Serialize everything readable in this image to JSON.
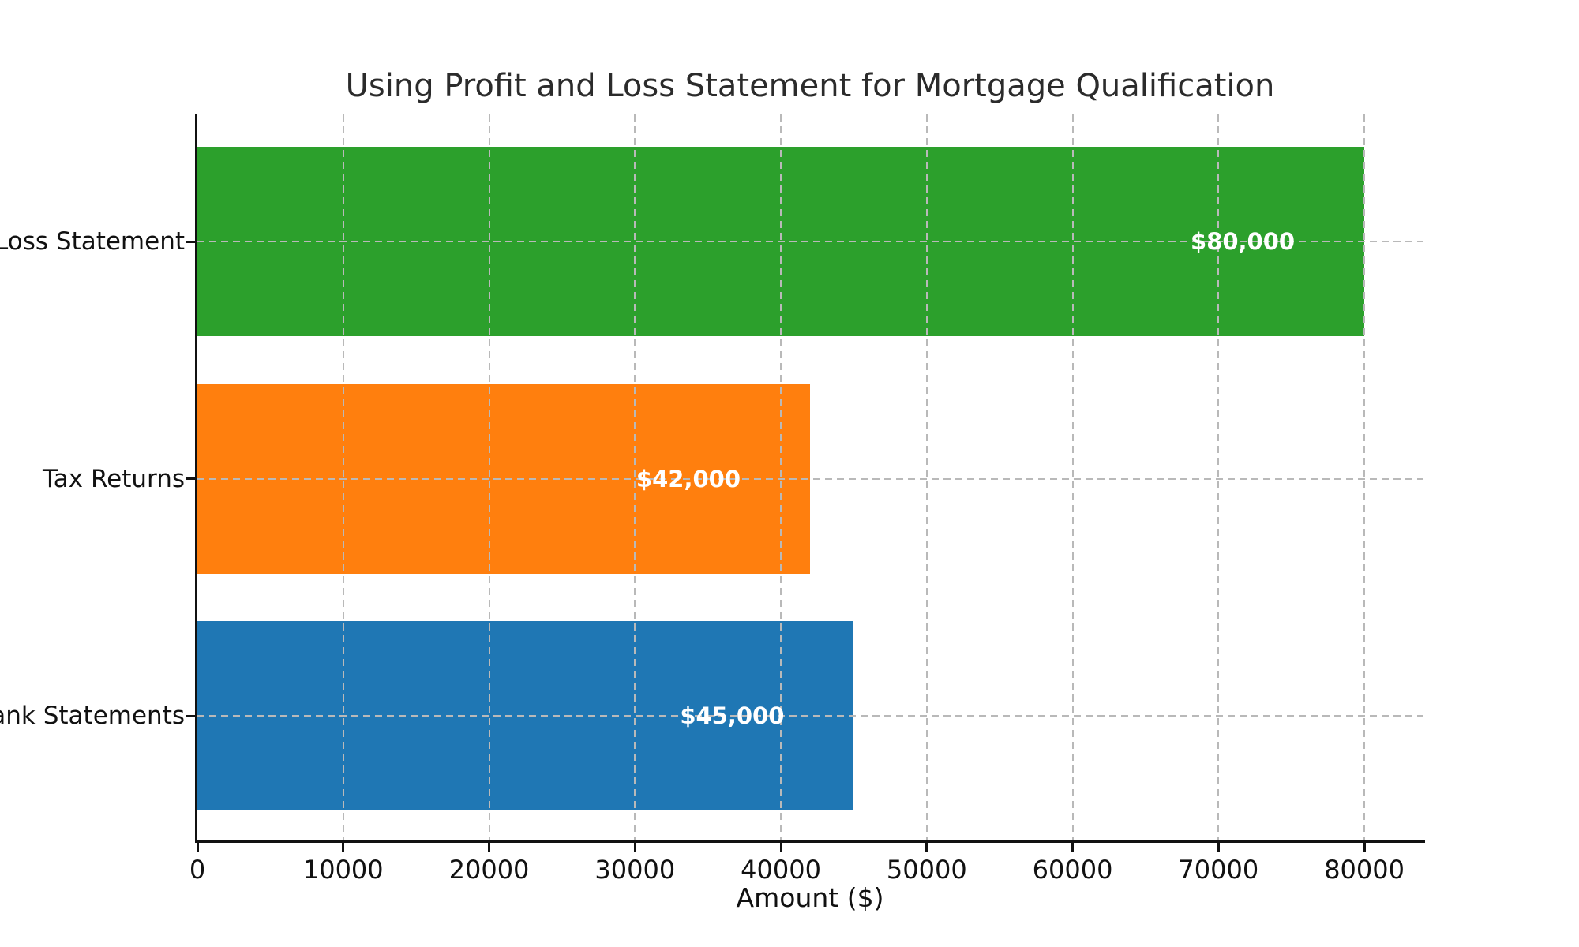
{
  "chart_data": {
    "type": "bar",
    "orientation": "horizontal",
    "title": "Using Profit and Loss Statement for Mortgage Qualification",
    "xlabel": "Amount ($)",
    "ylabel": "",
    "categories": [
      "Profit and Loss Statement",
      "Tax Returns",
      "Bank Statements"
    ],
    "visible_category_labels": [
      "oss Statement",
      "Tax Returns",
      "nk Statements"
    ],
    "values": [
      80000,
      42000,
      45000
    ],
    "bar_labels": [
      "$80,000",
      "$42,000",
      "$45,000"
    ],
    "bar_colors": [
      "#2ca02c",
      "#ff7f0e",
      "#1f77b4"
    ],
    "value_label_color": "#ffffff",
    "xlim": [
      0,
      84000
    ],
    "xticks": [
      0,
      10000,
      20000,
      30000,
      40000,
      50000,
      60000,
      70000,
      80000
    ],
    "grid": {
      "visible": true,
      "axes": "both",
      "line_style": "dashed",
      "color": "#b9b9b9",
      "drawn_over_bars": true
    },
    "legend": "none",
    "background": "#ffffff",
    "text_color": "#111111",
    "category_labels_clipped_at_left_edge": true
  }
}
